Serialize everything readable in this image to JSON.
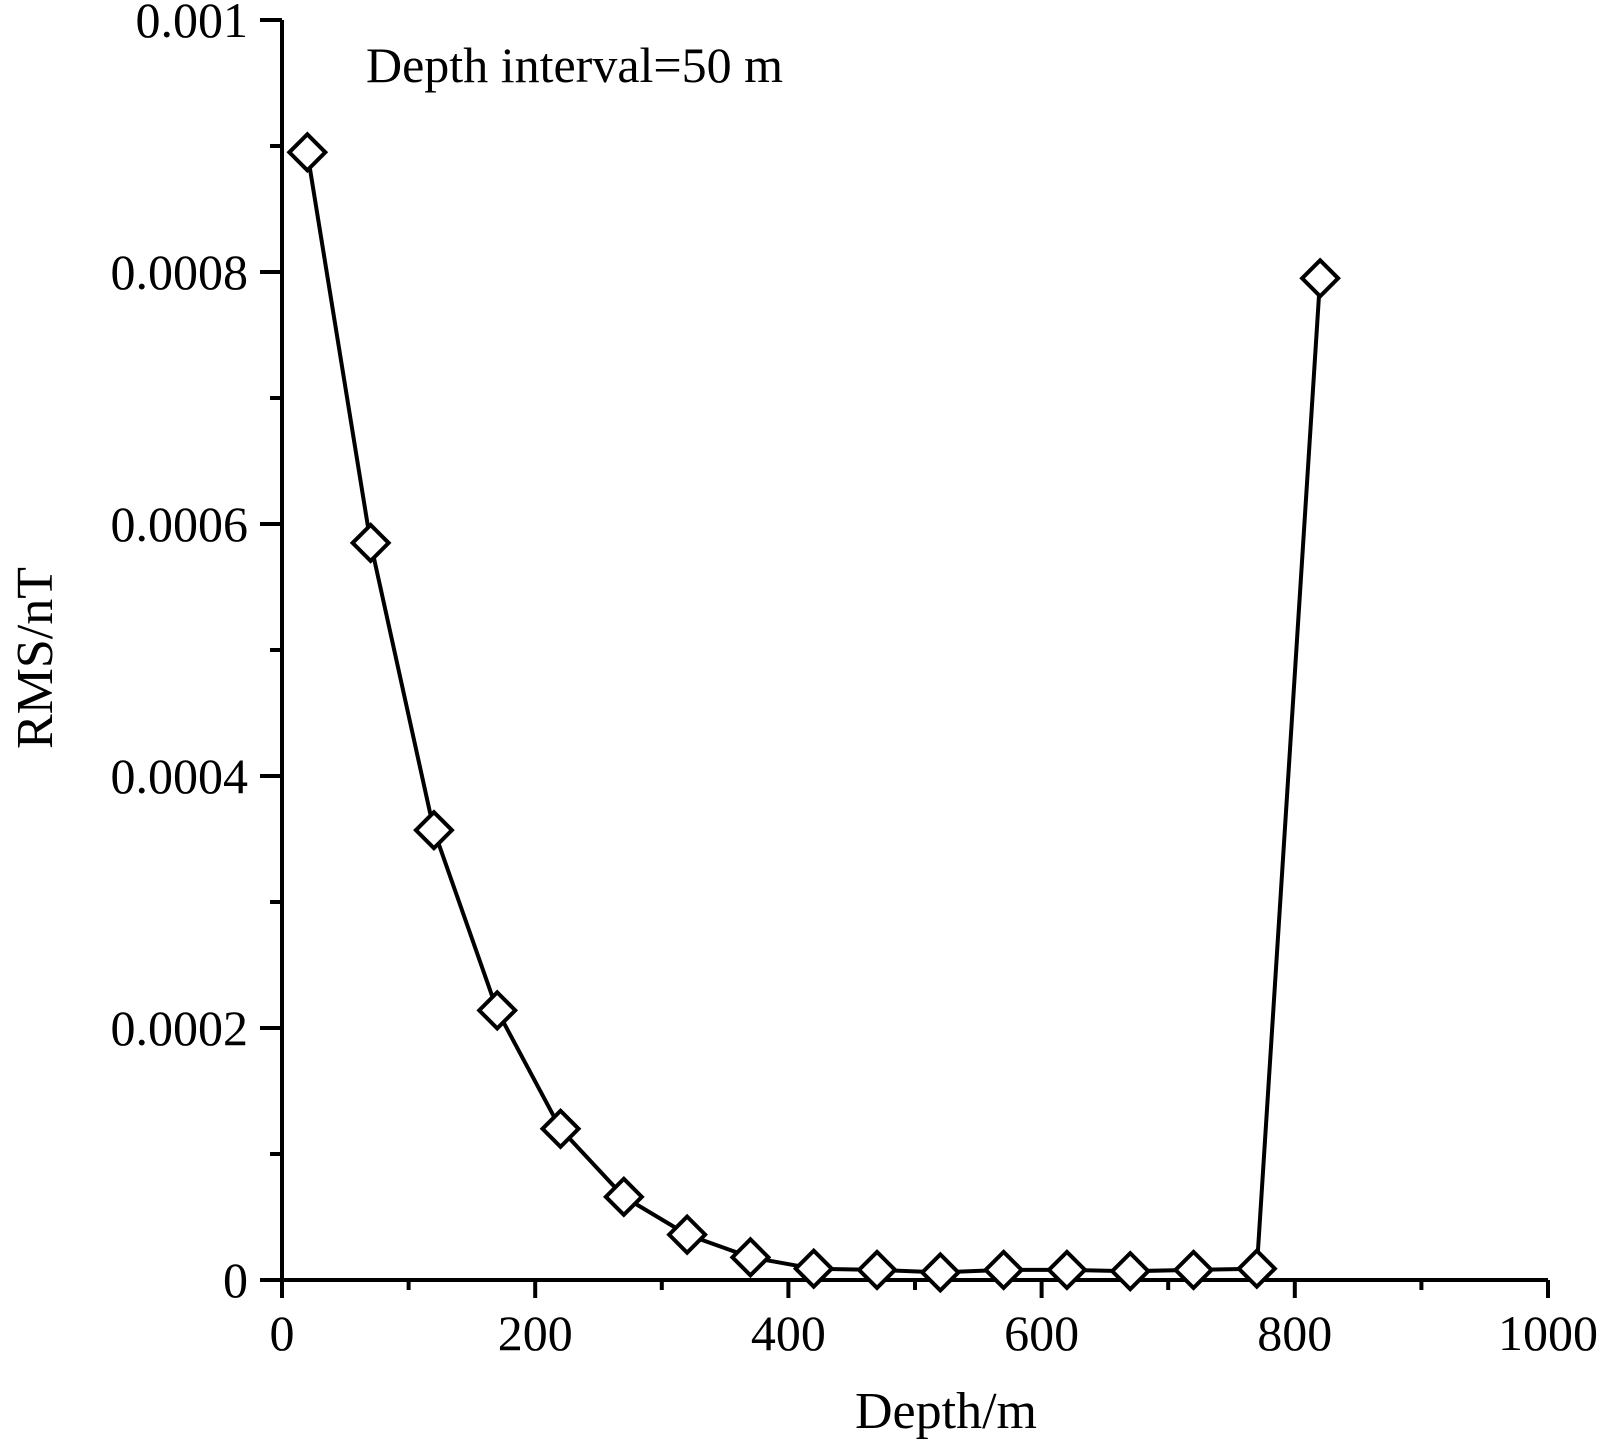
{
  "chart_data": {
    "type": "line",
    "title": "",
    "annotation": "Depth interval=50 m",
    "xlabel": "Depth/m",
    "ylabel": "RMS/nT",
    "xlim": [
      0,
      1000
    ],
    "ylim": [
      0,
      0.001
    ],
    "x_ticks": [
      0,
      200,
      400,
      600,
      800,
      1000
    ],
    "x_tick_labels": [
      "0",
      "200",
      "400",
      "600",
      "800",
      "1000"
    ],
    "y_ticks": [
      0,
      0.0002,
      0.0004,
      0.0006,
      0.0008,
      0.001
    ],
    "y_tick_labels": [
      "0",
      "0.0002",
      "0.0004",
      "0.0006",
      "0.0008",
      "0.001"
    ],
    "grid": false,
    "marker": "diamond",
    "series": [
      {
        "x": [
          20,
          70,
          120,
          170,
          220,
          270,
          320,
          370,
          420,
          470,
          520,
          570,
          620,
          670,
          720,
          770,
          820
        ],
        "y": [
          0.000895,
          0.000585,
          0.000357,
          0.000214,
          0.00012,
          6.6e-05,
          3.6e-05,
          1.8e-05,
          9e-06,
          8e-06,
          6e-06,
          8e-06,
          8e-06,
          7e-06,
          8e-06,
          9e-06,
          0.000795
        ]
      }
    ]
  }
}
